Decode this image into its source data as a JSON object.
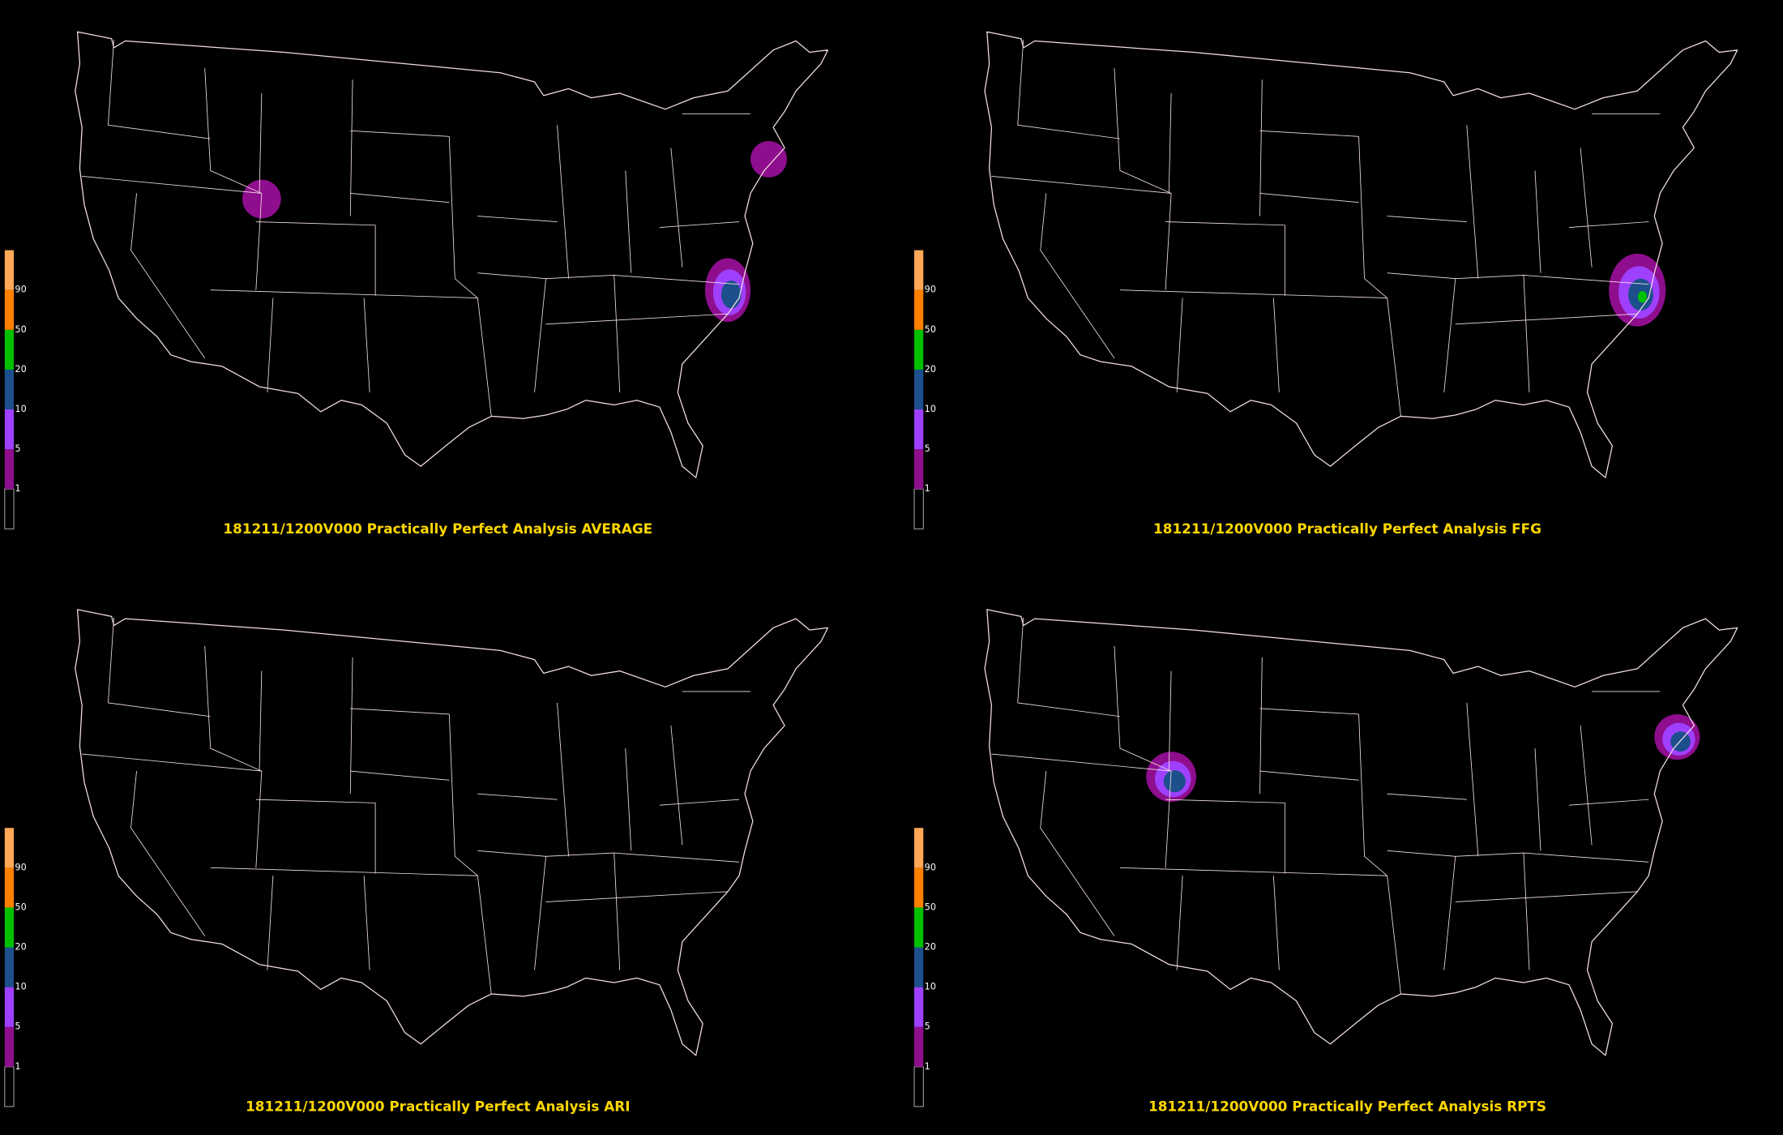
{
  "panels": [
    {
      "title": "181211/1200V000 Practically Perfect Analysis AVERAGE"
    },
    {
      "title": "181211/1200V000 Practically Perfect Analysis FFG"
    },
    {
      "title": "181211/1200V000 Practically Perfect Analysis ARI"
    },
    {
      "title": "181211/1200V000 Practically Perfect Analysis RPTS"
    }
  ],
  "colorbar": {
    "labels": [
      1,
      5,
      10,
      20,
      50,
      90
    ],
    "colors": [
      "#000000",
      "#8e0e8e",
      "#a040ff",
      "#1c4f8c",
      "#00c000",
      "#ff7f00",
      "#ffa858"
    ]
  }
}
